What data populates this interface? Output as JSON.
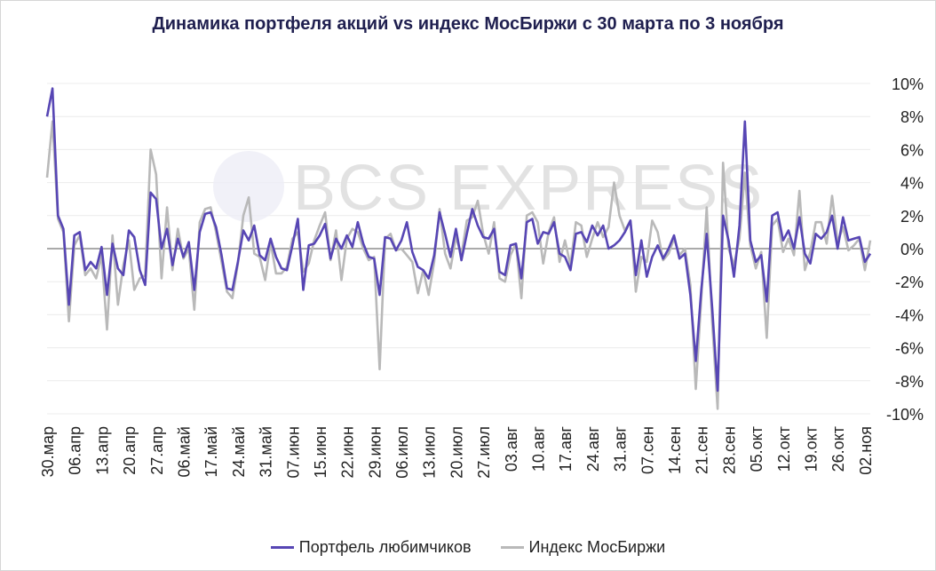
{
  "colors": {
    "portfolio": "#5746b4",
    "index": "#b9b9b9",
    "zero_line": "#555555",
    "grid": "#ececec"
  },
  "watermark": "BCS EXPRESS",
  "chart_data": {
    "type": "line",
    "title": "Динамика портфеля акций vs индекс МосБиржи с 30 марта по 3 ноября",
    "xlabel": "",
    "ylabel": "",
    "ylim": [
      -10,
      10
    ],
    "yticks": [
      "10%",
      "8%",
      "6%",
      "4%",
      "2%",
      "0%",
      "-2%",
      "-4%",
      "-6%",
      "-8%",
      "-10%"
    ],
    "ytick_values": [
      10,
      8,
      6,
      4,
      2,
      0,
      -2,
      -4,
      -6,
      -8,
      -10
    ],
    "xtick_labels": [
      "30.мар",
      "06.апр",
      "13.апр",
      "20.апр",
      "27.апр",
      "06.май",
      "17.май",
      "24.май",
      "31.май",
      "07.июн",
      "15.июн",
      "22.июн",
      "29.июн",
      "06.июл",
      "13.июл",
      "20.июл",
      "27.июл",
      "03.авг",
      "10.авг",
      "17.авг",
      "24.авг",
      "31.авг",
      "07.сен",
      "14.сен",
      "21.сен",
      "28.сен",
      "05.окт",
      "12.окт",
      "19.окт",
      "26.окт",
      "02.ноя"
    ],
    "xtick_index": [
      0,
      5,
      10,
      15,
      20,
      25,
      30,
      35,
      40,
      45,
      50,
      55,
      60,
      65,
      70,
      75,
      80,
      85,
      90,
      95,
      100,
      105,
      110,
      115,
      120,
      125,
      130,
      135,
      140,
      145,
      150
    ],
    "legend_position": "bottom",
    "grid": true,
    "series": [
      {
        "name": "Портфель любимчиков",
        "color": "#5746b4",
        "values": [
          8.0,
          9.7,
          2.0,
          1.2,
          -3.4,
          0.8,
          1.0,
          -1.3,
          -0.8,
          -1.2,
          0.1,
          -2.8,
          0.3,
          -1.2,
          -1.6,
          1.1,
          0.7,
          -1.3,
          -2.2,
          3.4,
          3.0,
          0.0,
          1.2,
          -1.0,
          0.6,
          -0.5,
          0.4,
          -2.5,
          1.0,
          2.1,
          2.2,
          1.3,
          -0.4,
          -2.4,
          -2.5,
          -0.8,
          1.1,
          0.5,
          1.4,
          -0.4,
          -0.7,
          0.6,
          -0.5,
          -1.2,
          -1.3,
          0.2,
          1.8,
          -2.5,
          0.2,
          0.3,
          0.8,
          1.5,
          -0.6,
          0.6,
          0.0,
          0.8,
          0.1,
          1.6,
          0.3,
          -0.5,
          -0.6,
          -2.8,
          0.7,
          0.6,
          -0.1,
          0.5,
          1.6,
          -0.2,
          -1.1,
          -1.3,
          -1.8,
          -0.4,
          2.2,
          0.9,
          -0.5,
          1.2,
          -0.7,
          0.9,
          2.4,
          1.4,
          0.7,
          0.6,
          1.2,
          -1.4,
          -1.6,
          0.2,
          0.3,
          -1.8,
          1.6,
          1.8,
          0.3,
          1.0,
          0.9,
          1.6,
          -0.3,
          -0.5,
          -1.3,
          0.9,
          1.0,
          0.4,
          1.4,
          0.8,
          1.4,
          0.0,
          0.2,
          0.5,
          1.0,
          1.7,
          -1.6,
          0.5,
          -1.7,
          -0.5,
          0.2,
          -0.6,
          0.0,
          0.8,
          -0.6,
          -0.3,
          -2.8,
          -6.8,
          -2.5,
          0.9,
          -3.6,
          -8.6,
          2.0,
          0.5,
          -1.7,
          1.4,
          7.7,
          0.5,
          -0.8,
          -0.4,
          -3.2,
          2.0,
          2.2,
          0.5,
          1.1,
          0.0,
          1.9,
          -0.3,
          -0.9,
          0.9,
          0.6,
          1.0,
          2.0,
          0.0,
          1.9,
          0.5,
          0.6,
          0.7,
          -0.8,
          -0.3
        ]
      },
      {
        "name": "Индекс МосБиржи",
        "color": "#b9b9b9",
        "values": [
          4.3,
          7.7,
          1.8,
          1.0,
          -4.4,
          0.2,
          0.8,
          -1.6,
          -1.2,
          -1.8,
          -0.4,
          -4.9,
          0.8,
          -3.4,
          -1.0,
          0.5,
          -2.5,
          -1.8,
          -1.6,
          6.0,
          4.5,
          -1.8,
          2.5,
          -1.3,
          1.2,
          -0.6,
          0.0,
          -3.7,
          1.6,
          2.4,
          2.5,
          1.0,
          -0.8,
          -2.6,
          -3.0,
          -0.9,
          2.0,
          3.1,
          -0.3,
          -0.5,
          -1.9,
          0.4,
          -1.5,
          -1.5,
          -1.1,
          0.6,
          1.0,
          -1.4,
          -0.9,
          0.5,
          1.4,
          2.2,
          -0.7,
          1.1,
          -1.9,
          0.6,
          1.2,
          1.0,
          0.0,
          -0.7,
          -0.5,
          -7.3,
          0.6,
          0.9,
          -0.1,
          0.0,
          -0.4,
          -0.8,
          -2.7,
          -1.3,
          -2.8,
          -0.8,
          2.4,
          -0.3,
          -1.2,
          0.7,
          -0.4,
          1.7,
          1.9,
          2.9,
          0.9,
          -0.3,
          1.6,
          -1.8,
          -2.0,
          -0.4,
          0.3,
          -3.0,
          2.0,
          2.2,
          1.6,
          -0.9,
          1.0,
          1.9,
          -0.8,
          0.5,
          -1.0,
          1.6,
          1.4,
          -0.5,
          0.6,
          1.6,
          0.7,
          1.3,
          4.0,
          2.0,
          1.1,
          1.7,
          -2.6,
          -0.5,
          -0.8,
          1.7,
          1.0,
          -0.7,
          -0.3,
          0.6,
          -0.4,
          0.0,
          -2.2,
          -8.5,
          -3.0,
          2.5,
          -4.5,
          -9.7,
          5.2,
          0.0,
          -1.0,
          0.6,
          4.6,
          0.2,
          -1.2,
          -0.2,
          -5.4,
          1.4,
          1.8,
          -0.2,
          0.6,
          -0.4,
          3.5,
          -1.3,
          -0.2,
          1.6,
          1.6,
          0.3,
          3.2,
          0.4,
          1.3,
          -0.1,
          0.2,
          0.6,
          -1.3,
          0.5
        ]
      }
    ]
  }
}
